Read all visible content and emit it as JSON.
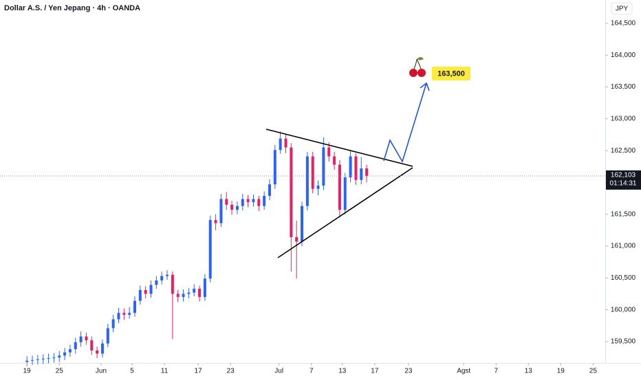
{
  "chart_data": {
    "type": "candlestick",
    "title": "Dollar A.S. / Yen Jepang · 4h · OANDA",
    "currency": "JPY",
    "up_color": "#2962ff",
    "down_color": "#e91e63",
    "x": [
      20,
      24,
      28,
      32,
      36,
      40,
      44,
      48,
      52,
      56,
      60,
      64,
      68,
      72,
      76,
      80,
      84,
      88,
      92,
      96,
      100,
      104,
      108,
      112,
      116,
      120,
      124,
      128,
      132,
      136,
      140,
      144,
      148,
      152,
      156,
      160,
      164,
      168,
      172,
      176,
      180,
      184,
      188,
      192,
      196,
      200,
      204,
      208,
      212,
      216,
      220,
      224,
      228,
      232,
      236,
      240,
      244,
      248,
      252,
      256,
      260,
      264,
      268,
      272
    ],
    "open": [
      159.18,
      159.2,
      159.21,
      159.22,
      159.23,
      159.24,
      159.25,
      159.28,
      159.33,
      159.38,
      159.49,
      159.58,
      159.52,
      159.36,
      159.31,
      159.47,
      159.71,
      159.85,
      159.95,
      159.92,
      159.95,
      160.14,
      160.31,
      160.25,
      160.39,
      160.46,
      160.53,
      160.55,
      160.25,
      160.2,
      160.25,
      160.27,
      160.33,
      160.2,
      160.49,
      161.41,
      161.36,
      161.74,
      161.65,
      161.57,
      161.63,
      161.74,
      161.69,
      161.74,
      161.63,
      161.79,
      161.97,
      162.51,
      162.69,
      162.55,
      161.14,
      161.07,
      161.63,
      162.41,
      161.9,
      161.95,
      162.55,
      162.41,
      162.28,
      161.57,
      162.08,
      162.41,
      162.04,
      162.22
    ],
    "high": [
      159.27,
      159.28,
      159.29,
      159.3,
      159.31,
      159.32,
      159.35,
      159.4,
      159.45,
      159.56,
      159.66,
      159.64,
      159.58,
      159.42,
      159.53,
      159.78,
      159.92,
      160.03,
      160.02,
      160.04,
      160.21,
      160.38,
      160.37,
      160.46,
      160.53,
      160.6,
      160.62,
      160.6,
      160.31,
      160.32,
      160.34,
      160.4,
      160.38,
      160.56,
      161.48,
      161.5,
      161.82,
      161.85,
      161.71,
      161.7,
      161.82,
      161.8,
      161.81,
      161.79,
      161.86,
      162.05,
      162.59,
      162.8,
      162.76,
      162.62,
      161.4,
      161.7,
      162.48,
      162.48,
      162.03,
      162.71,
      162.63,
      162.48,
      162.35,
      162.15,
      162.5,
      162.46,
      162.4,
      162.28
    ],
    "low": [
      159.11,
      159.13,
      159.14,
      159.15,
      159.16,
      159.17,
      159.18,
      159.21,
      159.26,
      159.31,
      159.42,
      159.45,
      159.29,
      159.24,
      159.25,
      159.41,
      159.65,
      159.79,
      159.84,
      159.86,
      159.89,
      160.08,
      160.18,
      160.19,
      160.33,
      160.4,
      160.47,
      159.54,
      160.12,
      160.13,
      160.18,
      160.21,
      160.13,
      160.14,
      160.43,
      161.25,
      161.3,
      161.57,
      161.49,
      161.5,
      161.56,
      161.61,
      161.62,
      161.55,
      161.57,
      161.72,
      161.9,
      162.45,
      162.46,
      160.6,
      160.49,
      161.0,
      161.56,
      161.83,
      161.8,
      161.88,
      162.33,
      162.2,
      161.45,
      161.5,
      162.0,
      161.96,
      161.97,
      162.0
    ],
    "close": [
      159.2,
      159.21,
      159.22,
      159.23,
      159.24,
      159.25,
      159.28,
      159.33,
      159.38,
      159.49,
      159.58,
      159.52,
      159.36,
      159.31,
      159.47,
      159.71,
      159.85,
      159.95,
      159.92,
      159.95,
      160.14,
      160.31,
      160.25,
      160.39,
      160.46,
      160.53,
      160.55,
      160.25,
      160.2,
      160.25,
      160.27,
      160.33,
      160.2,
      160.49,
      161.41,
      161.36,
      161.74,
      161.65,
      161.57,
      161.63,
      161.74,
      161.69,
      161.74,
      161.63,
      161.79,
      161.97,
      162.51,
      162.69,
      162.55,
      161.14,
      161.07,
      161.63,
      162.41,
      161.9,
      161.95,
      162.55,
      162.41,
      162.28,
      161.57,
      162.08,
      162.41,
      162.04,
      162.22,
      162.1
    ],
    "xlim": [
      0,
      449
    ],
    "xticks": [
      {
        "value": 20,
        "label": "19"
      },
      {
        "value": 44,
        "label": "25"
      },
      {
        "value": 75,
        "label": "Jun"
      },
      {
        "value": 98,
        "label": "5"
      },
      {
        "value": 122,
        "label": "11"
      },
      {
        "value": 147,
        "label": "17"
      },
      {
        "value": 171,
        "label": "23"
      },
      {
        "value": 207,
        "label": "Jul"
      },
      {
        "value": 231,
        "label": "7"
      },
      {
        "value": 254,
        "label": "13"
      },
      {
        "value": 278,
        "label": "17"
      },
      {
        "value": 303,
        "label": "23"
      },
      {
        "value": 344,
        "label": "Agst"
      },
      {
        "value": 368,
        "label": "7"
      },
      {
        "value": 392,
        "label": "13"
      },
      {
        "value": 416,
        "label": "19"
      },
      {
        "value": 440,
        "label": "25"
      }
    ],
    "ylim": [
      159.165,
      164.867
    ],
    "yticks": [
      {
        "value": 159.5,
        "label": "159,500"
      },
      {
        "value": 160,
        "label": "160,000"
      },
      {
        "value": 160.5,
        "label": "160,500"
      },
      {
        "value": 161,
        "label": "161,000"
      },
      {
        "value": 161.5,
        "label": "161,500"
      },
      {
        "value": 162,
        "label": "162,000"
      },
      {
        "value": 162.5,
        "label": "162,500"
      },
      {
        "value": 163,
        "label": "163,000"
      },
      {
        "value": 163.5,
        "label": "163,500"
      },
      {
        "value": 164,
        "label": "164,000"
      },
      {
        "value": 164.5,
        "label": "164,500"
      }
    ],
    "last_price": {
      "value": 162.103,
      "label": "162,103"
    },
    "countdown": "01:14:31",
    "target_label": "163,500"
  }
}
